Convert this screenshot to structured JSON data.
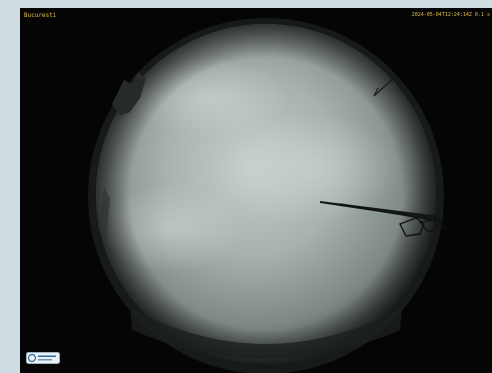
{
  "viewer": {
    "camera_label": "Bucuresti",
    "timestamp": "2024-05-04T12:24:14Z 0.1 s"
  },
  "logo": {
    "icon": "logo-badge-icon"
  },
  "colors": {
    "background": "#cfdde2",
    "viewer_bg": "#050505",
    "sky_center": "#c3ccc9",
    "sky_edge": "#5e6663",
    "text_overlay": "#e8c24a"
  }
}
